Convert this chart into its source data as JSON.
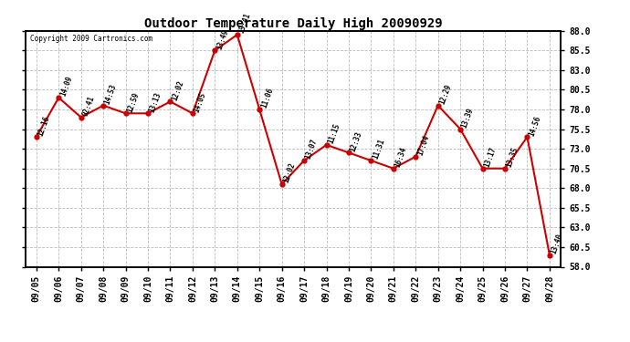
{
  "title": "Outdoor Temperature Daily High 20090929",
  "copyright": "Copyright 2009 Cartronics.com",
  "dates": [
    "09/05",
    "09/06",
    "09/07",
    "09/08",
    "09/09",
    "09/10",
    "09/11",
    "09/12",
    "09/13",
    "09/14",
    "09/15",
    "09/16",
    "09/17",
    "09/18",
    "09/19",
    "09/20",
    "09/21",
    "09/22",
    "09/23",
    "09/24",
    "09/25",
    "09/26",
    "09/27",
    "09/28"
  ],
  "temps": [
    74.5,
    79.5,
    77.0,
    78.5,
    77.5,
    77.5,
    79.0,
    77.5,
    85.5,
    87.5,
    78.0,
    68.5,
    71.5,
    73.5,
    72.5,
    71.5,
    70.5,
    72.0,
    78.5,
    75.5,
    70.5,
    70.5,
    74.5,
    59.5
  ],
  "times": [
    "12:16",
    "14:09",
    "02:41",
    "14:53",
    "12:59",
    "13:13",
    "12:02",
    "14:05",
    "13:49",
    "15:41",
    "11:06",
    "12:02",
    "13:07",
    "11:15",
    "12:33",
    "11:31",
    "16:34",
    "17:04",
    "12:29",
    "13:39",
    "13:17",
    "13:35",
    "14:56",
    "13:40"
  ],
  "line_color": "#cc0000",
  "marker_color": "#cc0000",
  "bg_color": "#ffffff",
  "grid_color": "#bbbbbb",
  "ylim": [
    58.0,
    88.0
  ],
  "yticks": [
    58.0,
    60.5,
    63.0,
    65.5,
    68.0,
    70.5,
    73.0,
    75.5,
    78.0,
    80.5,
    83.0,
    85.5,
    88.0
  ],
  "title_fontsize": 10,
  "label_fontsize": 7,
  "annot_fontsize": 5.5
}
